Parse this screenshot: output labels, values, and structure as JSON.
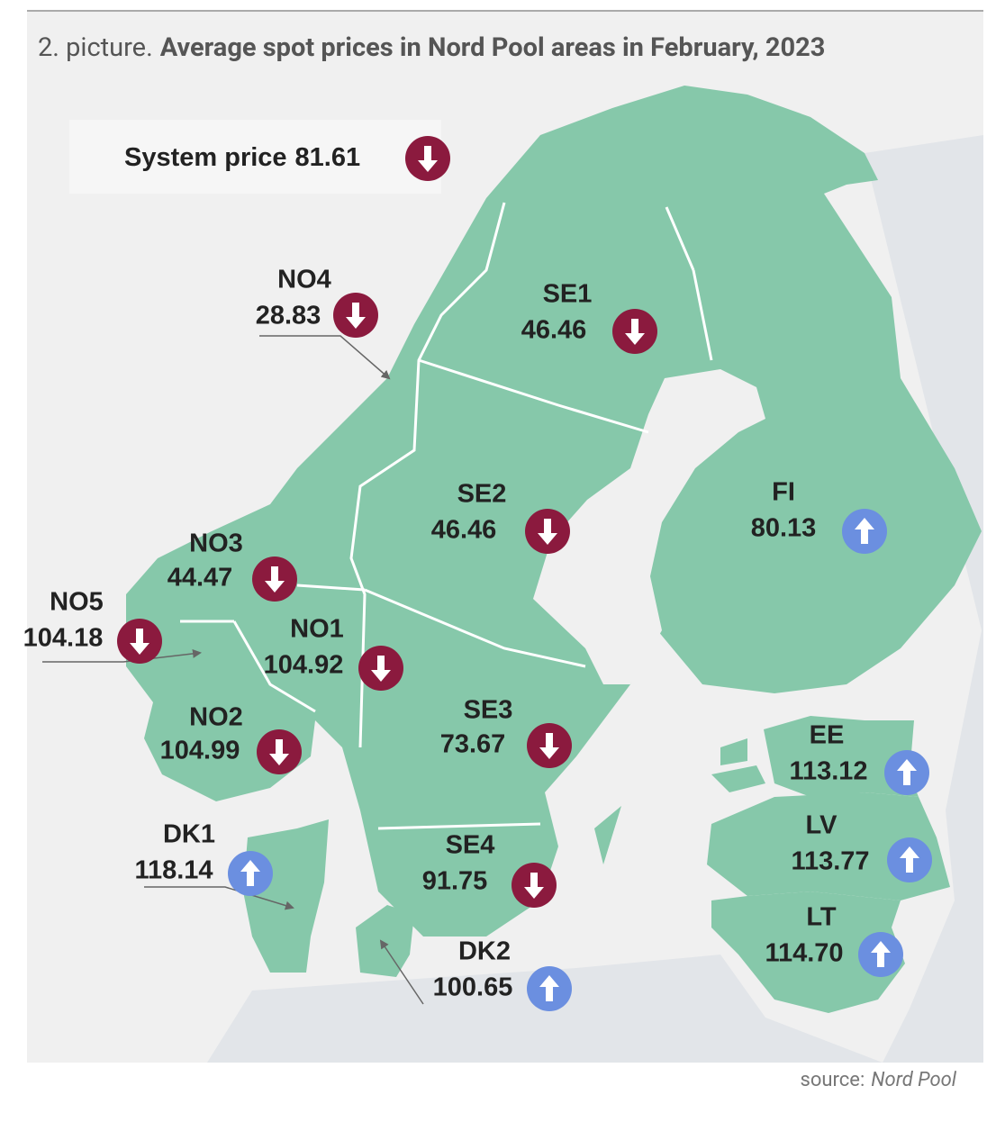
{
  "header": {
    "prefix": "2. picture.",
    "title": "Average spot prices in Nord Pool areas in February, 2023"
  },
  "system_price": {
    "label": "System price",
    "value": "81.61",
    "trend": "down"
  },
  "areas": [
    {
      "name": "NO4",
      "price": "28.83",
      "trend": "down"
    },
    {
      "name": "SE1",
      "price": "46.46",
      "trend": "down"
    },
    {
      "name": "SE2",
      "price": "46.46",
      "trend": "down"
    },
    {
      "name": "FI",
      "price": "80.13",
      "trend": "up"
    },
    {
      "name": "NO3",
      "price": "44.47",
      "trend": "down"
    },
    {
      "name": "NO5",
      "price": "104.18",
      "trend": "down"
    },
    {
      "name": "NO1",
      "price": "104.92",
      "trend": "down"
    },
    {
      "name": "SE3",
      "price": "73.67",
      "trend": "down"
    },
    {
      "name": "NO2",
      "price": "104.99",
      "trend": "down"
    },
    {
      "name": "EE",
      "price": "113.12",
      "trend": "up"
    },
    {
      "name": "DK1",
      "price": "118.14",
      "trend": "up"
    },
    {
      "name": "SE4",
      "price": "91.75",
      "trend": "down"
    },
    {
      "name": "LV",
      "price": "113.77",
      "trend": "up"
    },
    {
      "name": "LT",
      "price": "114.70",
      "trend": "up"
    },
    {
      "name": "DK2",
      "price": "100.65",
      "trend": "up"
    }
  ],
  "source": {
    "prefix": "source:",
    "name": "Nord Pool"
  }
}
